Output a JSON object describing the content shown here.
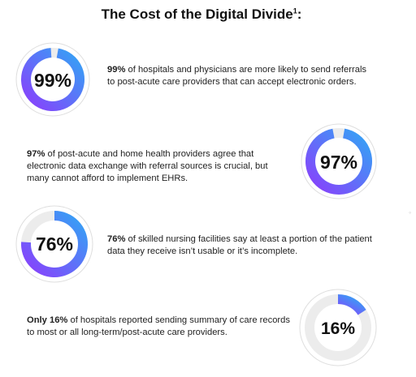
{
  "title": "The Cost of the Digital Divide",
  "title_footnote": "1",
  "colors": {
    "gradient_start": "#8a3ffc",
    "gradient_end": "#33a4f5",
    "track": "#ececec",
    "ring_outline": "#dedede"
  },
  "chart_data": [
    {
      "type": "pie",
      "variant": "donut",
      "value": 99,
      "max": 100,
      "label": "99%",
      "text_bold": "99%",
      "text_rest": " of hospitals and physicians are more likely to send referrals to post-acute care providers that can accept electronic orders."
    },
    {
      "type": "pie",
      "variant": "donut",
      "value": 97,
      "max": 100,
      "label": "97%",
      "text_bold": "97%",
      "text_rest": " of post-acute and home health providers agree that electronic data exchange with referral sources is crucial, but many cannot afford to implement EHRs."
    },
    {
      "type": "pie",
      "variant": "donut",
      "value": 76,
      "max": 100,
      "label": "76%",
      "text_bold": "76%",
      "text_rest": " of skilled nursing facilities say at least a portion of the patient data they receive isn’t usable or it’s incomplete."
    },
    {
      "type": "pie",
      "variant": "donut",
      "value": 16,
      "max": 100,
      "label": "16%",
      "text_bold": "Only 16%",
      "text_rest": " of hospitals reported sending summary of care records to most or all long-term/post-acute care providers."
    }
  ],
  "edge_glyph": "◦"
}
